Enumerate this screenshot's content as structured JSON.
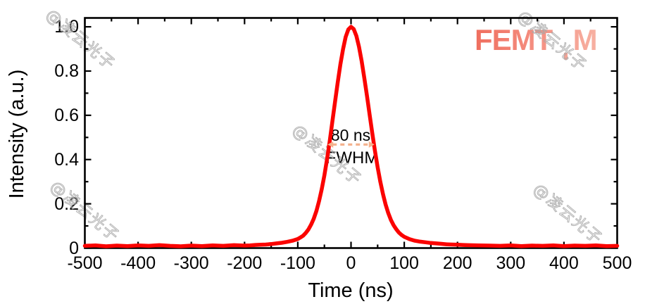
{
  "watermark": {
    "text": "@凌云光子"
  },
  "logo": {
    "text": "FEMTUM",
    "prefix": "FEMT",
    "u_letter": "U",
    "suffix": "M",
    "color_start": "#ef6e5e",
    "color_end": "#f7b1a2"
  },
  "chart_data": {
    "type": "line",
    "title": "",
    "xlabel": "Time (ns)",
    "ylabel": "Intensity (a.u.)",
    "xlim": [
      -500,
      500
    ],
    "ylim": [
      0,
      1.04
    ],
    "grid": false,
    "legend": "none",
    "x_tick_labels": [
      "-500",
      "-400",
      "-300",
      "-200",
      "-100",
      "0",
      "100",
      "200",
      "300",
      "400",
      "500"
    ],
    "y_tick_labels": [
      "0",
      "0.2",
      "0.4",
      "0.6",
      "0.8",
      "1.0"
    ],
    "x_major_tick_step": 100,
    "x_minor_tick_step": 50,
    "y_major_tick_step": 0.2,
    "y_minor_tick_step": 0.1,
    "line_color": "#fb0300",
    "line_width": 5.5,
    "axis_color": "#000000",
    "annotation": {
      "label_value": "80 ns",
      "label_fwhm": "FWHM",
      "fwhm_ns": 80,
      "arrow": {
        "x1": -44,
        "x2": 44,
        "y": 0.468,
        "color": "#f4b28e",
        "dashed": true,
        "double_headed": true
      }
    },
    "series": [
      {
        "name": "pulse",
        "points": [
          [
            -500,
            0.01
          ],
          [
            -480,
            0.012
          ],
          [
            -460,
            0.008
          ],
          [
            -440,
            0.011
          ],
          [
            -420,
            0.009
          ],
          [
            -400,
            0.012
          ],
          [
            -380,
            0.01
          ],
          [
            -360,
            0.013
          ],
          [
            -340,
            0.01
          ],
          [
            -320,
            0.008
          ],
          [
            -300,
            0.011
          ],
          [
            -280,
            0.009
          ],
          [
            -260,
            0.012
          ],
          [
            -240,
            0.01
          ],
          [
            -220,
            0.013
          ],
          [
            -200,
            0.011
          ],
          [
            -190,
            0.012
          ],
          [
            -180,
            0.014
          ],
          [
            -170,
            0.015
          ],
          [
            -160,
            0.016
          ],
          [
            -150,
            0.018
          ],
          [
            -140,
            0.021
          ],
          [
            -130,
            0.024
          ],
          [
            -120,
            0.028
          ],
          [
            -110,
            0.033
          ],
          [
            -100,
            0.041
          ],
          [
            -95,
            0.048
          ],
          [
            -90,
            0.056
          ],
          [
            -85,
            0.068
          ],
          [
            -80,
            0.084
          ],
          [
            -75,
            0.106
          ],
          [
            -70,
            0.133
          ],
          [
            -65,
            0.168
          ],
          [
            -60,
            0.212
          ],
          [
            -55,
            0.266
          ],
          [
            -50,
            0.329
          ],
          [
            -45,
            0.403
          ],
          [
            -40,
            0.484
          ],
          [
            -35,
            0.572
          ],
          [
            -30,
            0.661
          ],
          [
            -25,
            0.748
          ],
          [
            -20,
            0.83
          ],
          [
            -15,
            0.899
          ],
          [
            -10,
            0.954
          ],
          [
            -5,
            0.988
          ],
          [
            0,
            1.0
          ],
          [
            5,
            0.99
          ],
          [
            10,
            0.959
          ],
          [
            15,
            0.91
          ],
          [
            20,
            0.845
          ],
          [
            25,
            0.768
          ],
          [
            30,
            0.687
          ],
          [
            35,
            0.601
          ],
          [
            40,
            0.519
          ],
          [
            45,
            0.439
          ],
          [
            50,
            0.365
          ],
          [
            55,
            0.3
          ],
          [
            60,
            0.244
          ],
          [
            65,
            0.197
          ],
          [
            70,
            0.158
          ],
          [
            75,
            0.127
          ],
          [
            80,
            0.103
          ],
          [
            85,
            0.085
          ],
          [
            90,
            0.07
          ],
          [
            95,
            0.059
          ],
          [
            100,
            0.051
          ],
          [
            110,
            0.04
          ],
          [
            120,
            0.033
          ],
          [
            130,
            0.029
          ],
          [
            140,
            0.026
          ],
          [
            150,
            0.023
          ],
          [
            160,
            0.021
          ],
          [
            170,
            0.019
          ],
          [
            180,
            0.017
          ],
          [
            190,
            0.016
          ],
          [
            200,
            0.015
          ],
          [
            210,
            0.014
          ],
          [
            220,
            0.013
          ],
          [
            240,
            0.012
          ],
          [
            260,
            0.011
          ],
          [
            280,
            0.01
          ],
          [
            300,
            0.012
          ],
          [
            320,
            0.009
          ],
          [
            340,
            0.011
          ],
          [
            360,
            0.01
          ],
          [
            380,
            0.012
          ],
          [
            400,
            0.009
          ],
          [
            420,
            0.011
          ],
          [
            440,
            0.01
          ],
          [
            460,
            0.012
          ],
          [
            480,
            0.009
          ],
          [
            500,
            0.01
          ]
        ]
      }
    ]
  }
}
